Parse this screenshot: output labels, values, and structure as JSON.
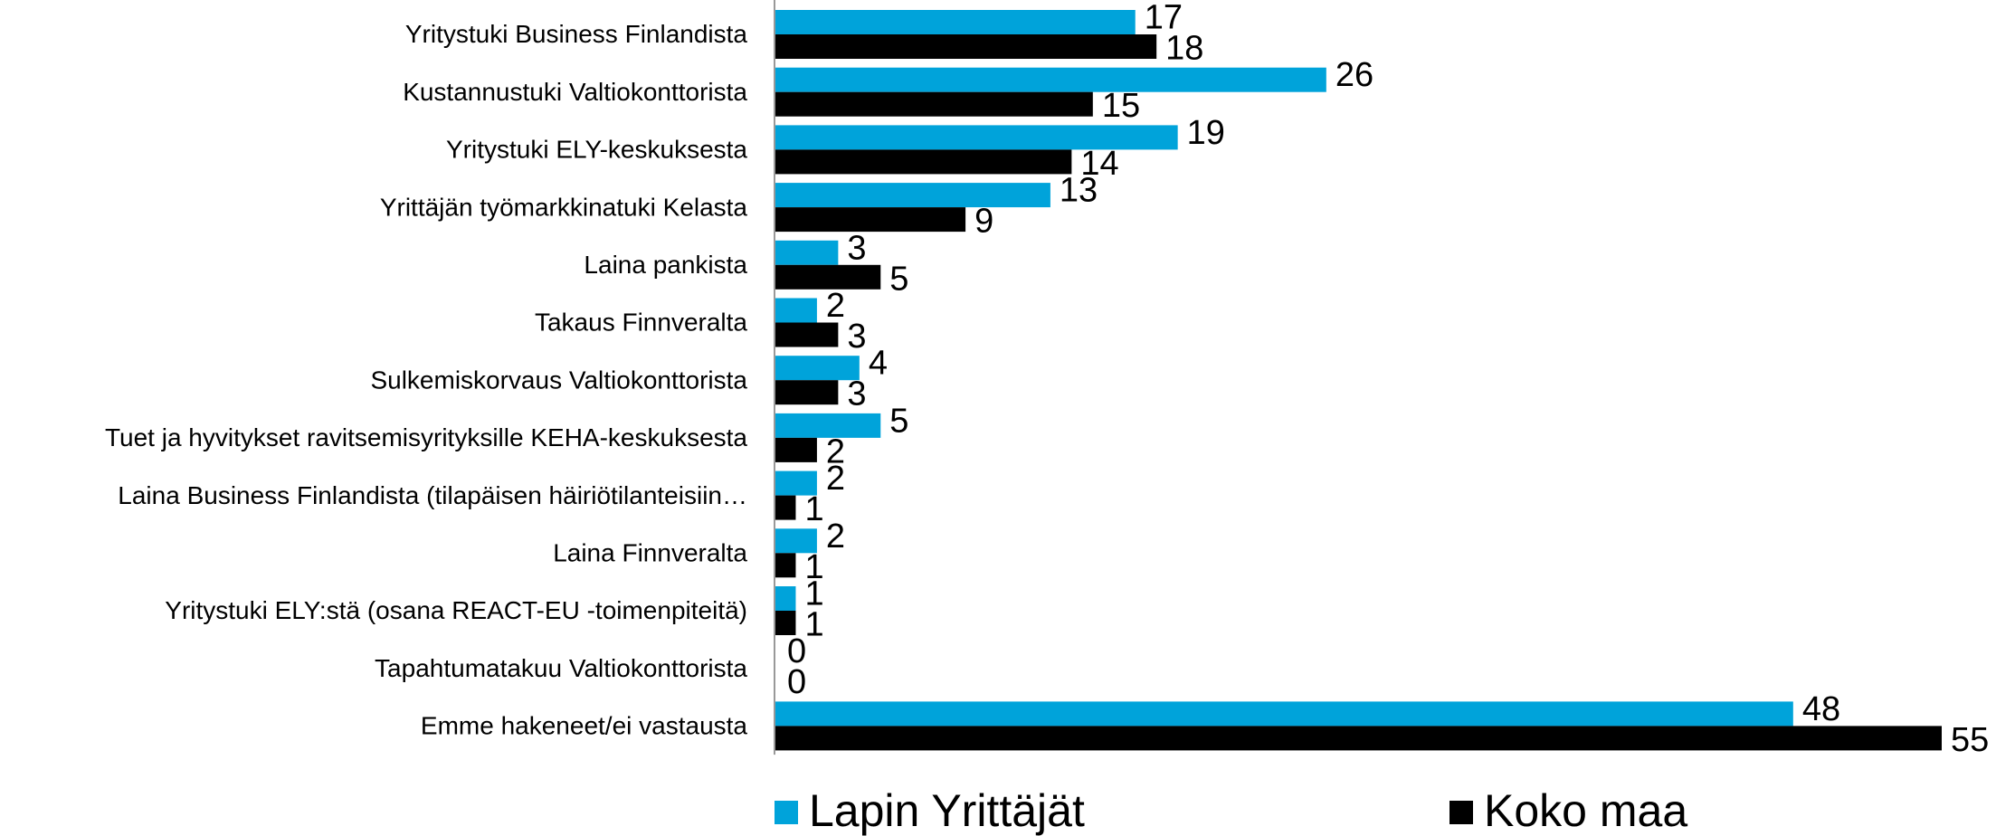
{
  "chart_data": {
    "type": "bar",
    "orientation": "horizontal",
    "categories": [
      "Yritystuki Business Finlandista",
      "Kustannustuki Valtiokonttorista",
      "Yritystuki ELY-keskuksesta",
      "Yrittäjän työmarkkinatuki Kelasta",
      "Laina pankista",
      "Takaus Finnveralta",
      "Sulkemiskorvaus Valtiokonttorista",
      "Tuet ja hyvitykset ravitsemisyrityksille KEHA-keskuksesta",
      "Laina Business Finlandista (tilapäisen häiriötilanteisiin…",
      "Laina Finnveralta",
      "Yritystuki ELY:stä (osana REACT-EU -toimenpiteitä)",
      "Tapahtumatakuu Valtiokonttorista",
      "Emme hakeneet/ei vastausta"
    ],
    "series": [
      {
        "name": "Lapin Yrittäjät",
        "color": "#00a3da",
        "values": [
          17,
          26,
          19,
          13,
          3,
          2,
          4,
          5,
          2,
          2,
          1,
          0,
          48
        ]
      },
      {
        "name": "Koko maa",
        "color": "#000000",
        "values": [
          18,
          15,
          14,
          9,
          5,
          3,
          3,
          2,
          1,
          1,
          1,
          0,
          55
        ]
      }
    ],
    "legend": "bottom"
  }
}
